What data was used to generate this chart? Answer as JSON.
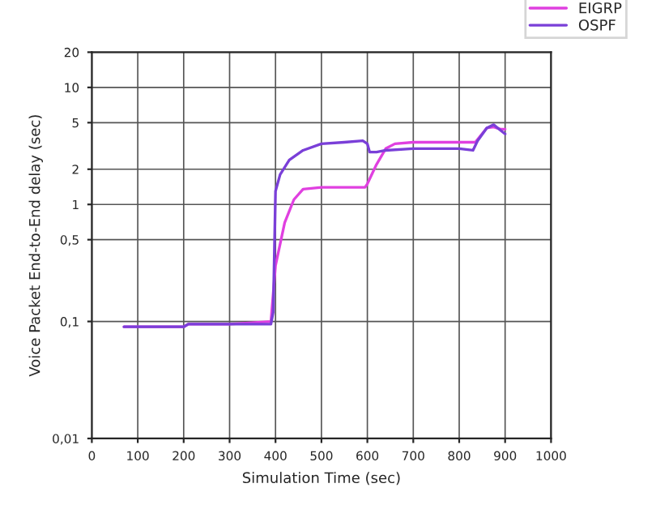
{
  "chart_data": {
    "type": "line",
    "xlabel": "Simulation Time (sec)",
    "ylabel": "Voice Packet End-to-End delay (sec)",
    "log": "y",
    "grid": true,
    "legend": "top right",
    "line_style": "solid",
    "marker": "none",
    "xlim": [
      0,
      1000
    ],
    "xticks": [
      0,
      100,
      200,
      300,
      400,
      500,
      600,
      700,
      800,
      900,
      1000
    ],
    "ylim": [
      0.01,
      20
    ],
    "yticks": [
      {
        "value": 0.01,
        "label": "0,01"
      },
      {
        "value": 0.1,
        "label": "0,1"
      },
      {
        "value": 0.5,
        "label": "0,5"
      },
      1,
      2,
      5,
      10,
      20
    ],
    "series": [
      {
        "name": "EIGRP",
        "color": "#e040e0",
        "x": [
          70,
          200,
          210,
          300,
          390,
          400,
          420,
          440,
          460,
          500,
          595,
          600,
          620,
          640,
          660,
          700,
          750,
          800,
          835,
          845,
          860,
          875,
          890,
          900
        ],
        "values": [
          0.09,
          0.09,
          0.095,
          0.095,
          0.1,
          0.3,
          0.7,
          1.1,
          1.35,
          1.4,
          1.4,
          1.5,
          2.2,
          3.0,
          3.3,
          3.4,
          3.4,
          3.4,
          3.4,
          3.8,
          4.5,
          4.6,
          4.4,
          4.4
        ]
      },
      {
        "name": "OSPF",
        "color": "#7a3fd8",
        "x": [
          70,
          200,
          210,
          300,
          390,
          395,
          400,
          410,
          430,
          460,
          500,
          550,
          590,
          600,
          605,
          620,
          640,
          700,
          750,
          800,
          830,
          840,
          860,
          875,
          890,
          900
        ],
        "values": [
          0.09,
          0.09,
          0.095,
          0.095,
          0.095,
          0.12,
          1.3,
          1.8,
          2.4,
          2.9,
          3.3,
          3.4,
          3.5,
          3.3,
          2.8,
          2.8,
          2.9,
          3.0,
          3.0,
          3.0,
          2.9,
          3.5,
          4.5,
          4.8,
          4.3,
          4.0
        ]
      }
    ]
  }
}
